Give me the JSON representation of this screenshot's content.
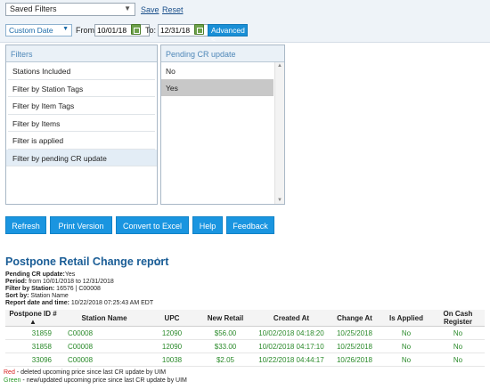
{
  "top": {
    "saved_filters": "Saved Filters",
    "save": "Save",
    "reset": "Reset"
  },
  "dates": {
    "range_type": "Custom Date",
    "from_label": "From:",
    "from_value": "10/01/18",
    "to_label": "To:",
    "to_value": "12/31/18",
    "advanced": "Advanced <"
  },
  "filters_panel": {
    "title": "Filters",
    "items": [
      "Stations Included",
      "Filter by Station Tags",
      "Filter by Item Tags",
      "Filter by Items",
      "Filter is applied",
      "Filter by pending CR update"
    ],
    "selected_index": 5
  },
  "pending_panel": {
    "title": "Pending CR update",
    "options": [
      "No",
      "Yes"
    ],
    "selected_index": 1
  },
  "actions": {
    "refresh": "Refresh",
    "print": "Print Version",
    "excel": "Convert to Excel",
    "help": "Help",
    "feedback": "Feedback"
  },
  "report": {
    "title": "Postpone Retail Change report",
    "meta": [
      {
        "label": "Pending CR update:",
        "value": "Yes"
      },
      {
        "label": "Period:",
        "value": " from 10/01/2018 to 12/31/2018"
      },
      {
        "label": "Filter by Station:",
        "value": " 16576 | C00008"
      },
      {
        "label": "Sort by:",
        "value": " Station Name"
      },
      {
        "label": "Report date and time:",
        "value": " 10/22/2018 07:25:43 AM EDT"
      }
    ],
    "columns": [
      "Postpone ID #",
      "Station Name",
      "UPC",
      "New Retail",
      "Created At",
      "Change At",
      "Is Applied",
      "On Cash Register"
    ],
    "rows": [
      [
        "31859",
        "C00008",
        "12090",
        "$56.00",
        "10/02/2018 04:18:20",
        "10/25/2018",
        "No",
        "No"
      ],
      [
        "31858",
        "C00008",
        "12090",
        "$33.00",
        "10/02/2018 04:17:10",
        "10/25/2018",
        "No",
        "No"
      ],
      [
        "33096",
        "C00008",
        "10038",
        "$2.05",
        "10/22/2018 04:44:17",
        "10/26/2018",
        "No",
        "No"
      ]
    ],
    "legend": [
      {
        "color_word": "Red",
        "text": " - deleted upcoming price since last CR update by UIM"
      },
      {
        "color_word": "Green",
        "text": " - new/updated upcoming price since last CR update by UIM"
      }
    ]
  }
}
